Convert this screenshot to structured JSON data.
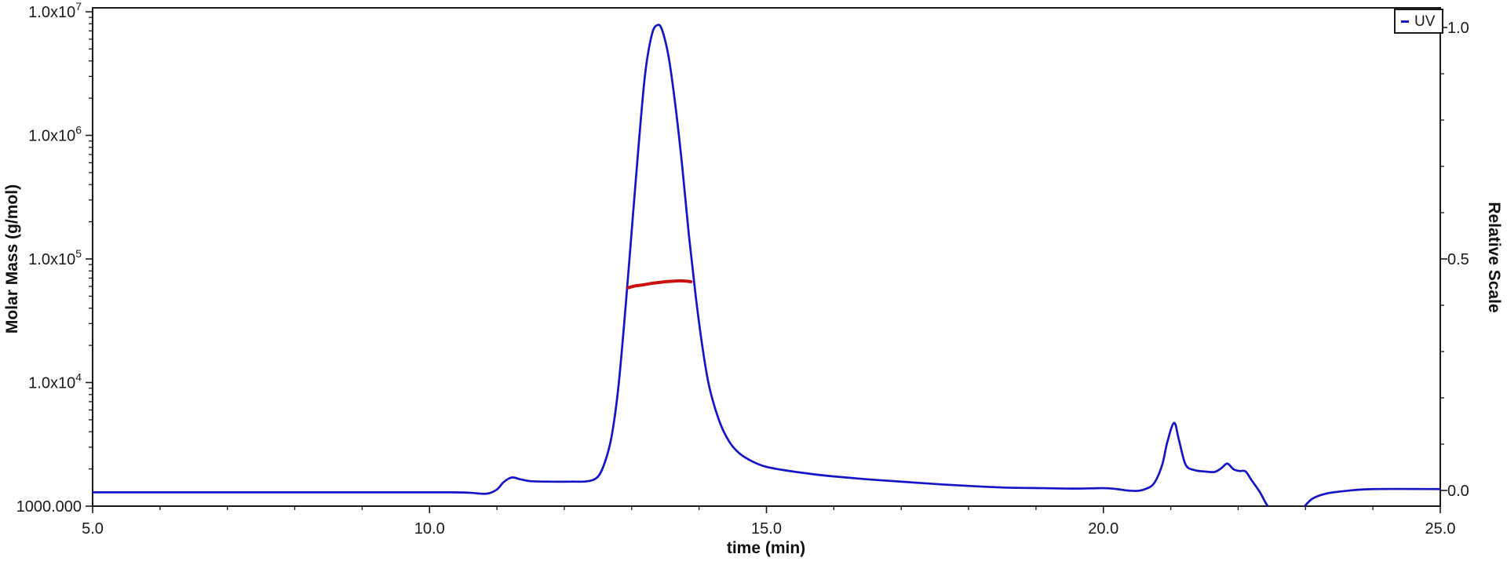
{
  "chart_data": {
    "type": "line",
    "title": "",
    "xlabel": "time (min)",
    "x_axis": {
      "min": 5,
      "max": 25,
      "minor_step": 1,
      "major_ticks": [
        {
          "value": 5,
          "label": "5.0"
        },
        {
          "value": 10,
          "label": "10.0"
        },
        {
          "value": 15,
          "label": "15.0"
        },
        {
          "value": 20,
          "label": "20.0"
        },
        {
          "value": 25,
          "label": "25.0"
        }
      ]
    },
    "left_axis": {
      "label": "Molar Mass (g/mol)",
      "scale": "log",
      "min": 1000,
      "max": 10000000,
      "major_ticks": [
        {
          "value": 10000000,
          "mantissa": "1.0x10",
          "exponent": "7"
        },
        {
          "value": 1000000,
          "mantissa": "1.0x10",
          "exponent": "6"
        },
        {
          "value": 100000,
          "mantissa": "1.0x10",
          "exponent": "5"
        },
        {
          "value": 10000,
          "mantissa": "1.0x10",
          "exponent": "4"
        },
        {
          "value": 1000,
          "mantissa": "1000.000",
          "exponent": ""
        }
      ]
    },
    "right_axis": {
      "label": "Relative Scale",
      "min": 0,
      "max": 1,
      "minor_step": 0.1,
      "major_ticks": [
        {
          "value": 0,
          "label": "0.0"
        },
        {
          "value": 0.5,
          "label": "0.5"
        },
        {
          "value": 1,
          "label": "1.0"
        }
      ]
    },
    "legend": {
      "position": "top-right",
      "entries": [
        "UV"
      ]
    },
    "colors": {
      "uv_trace": "#1414c8",
      "molar_mass_trace": "#cc1010",
      "frame": "#1a1a1a"
    },
    "grid": false,
    "series": [
      {
        "name": "UV",
        "axis": "right",
        "color": "#1414c8",
        "points": [
          [
            5.0,
            -0.004
          ],
          [
            7.0,
            -0.004
          ],
          [
            9.0,
            -0.004
          ],
          [
            10.3,
            -0.004
          ],
          [
            10.6,
            -0.005
          ],
          [
            10.85,
            -0.007
          ],
          [
            11.0,
            0.002
          ],
          [
            11.1,
            0.018
          ],
          [
            11.22,
            0.028
          ],
          [
            11.35,
            0.024
          ],
          [
            11.5,
            0.02
          ],
          [
            11.8,
            0.019
          ],
          [
            12.1,
            0.019
          ],
          [
            12.35,
            0.02
          ],
          [
            12.5,
            0.03
          ],
          [
            12.6,
            0.06
          ],
          [
            12.7,
            0.115
          ],
          [
            12.8,
            0.22
          ],
          [
            12.9,
            0.38
          ],
          [
            13.0,
            0.56
          ],
          [
            13.1,
            0.74
          ],
          [
            13.2,
            0.9
          ],
          [
            13.3,
            0.985
          ],
          [
            13.38,
            1.005
          ],
          [
            13.45,
            0.995
          ],
          [
            13.55,
            0.935
          ],
          [
            13.65,
            0.83
          ],
          [
            13.75,
            0.7
          ],
          [
            13.85,
            0.55
          ],
          [
            13.95,
            0.42
          ],
          [
            14.05,
            0.31
          ],
          [
            14.15,
            0.225
          ],
          [
            14.3,
            0.15
          ],
          [
            14.45,
            0.105
          ],
          [
            14.6,
            0.08
          ],
          [
            14.8,
            0.062
          ],
          [
            15.0,
            0.051
          ],
          [
            15.3,
            0.043
          ],
          [
            15.7,
            0.035
          ],
          [
            16.1,
            0.029
          ],
          [
            16.6,
            0.023
          ],
          [
            17.1,
            0.018
          ],
          [
            17.6,
            0.013
          ],
          [
            18.1,
            0.009
          ],
          [
            18.6,
            0.006
          ],
          [
            19.1,
            0.005
          ],
          [
            19.6,
            0.004
          ],
          [
            20.0,
            0.005
          ],
          [
            20.2,
            0.003
          ],
          [
            20.35,
            0.0
          ],
          [
            20.5,
            -0.001
          ],
          [
            20.62,
            0.003
          ],
          [
            20.75,
            0.015
          ],
          [
            20.87,
            0.054
          ],
          [
            20.95,
            0.105
          ],
          [
            21.05,
            0.146
          ],
          [
            21.12,
            0.11
          ],
          [
            21.22,
            0.056
          ],
          [
            21.35,
            0.044
          ],
          [
            21.5,
            0.041
          ],
          [
            21.65,
            0.04
          ],
          [
            21.75,
            0.048
          ],
          [
            21.84,
            0.058
          ],
          [
            21.93,
            0.046
          ],
          [
            22.02,
            0.042
          ],
          [
            22.11,
            0.041
          ],
          [
            22.2,
            0.022
          ],
          [
            22.32,
            -0.003
          ],
          [
            22.44,
            -0.034
          ],
          [
            22.6,
            -0.06
          ],
          [
            22.8,
            -0.062
          ],
          [
            22.95,
            -0.04
          ],
          [
            23.1,
            -0.018
          ],
          [
            23.3,
            -0.007
          ],
          [
            23.6,
            -0.001
          ],
          [
            24.0,
            0.003
          ],
          [
            25.0,
            0.003
          ]
        ]
      },
      {
        "name": "Molar Mass",
        "axis": "left",
        "color": "#cc1010",
        "points": [
          [
            12.95,
            58500
          ],
          [
            13.05,
            60500
          ],
          [
            13.15,
            61500
          ],
          [
            13.3,
            63500
          ],
          [
            13.45,
            65000
          ],
          [
            13.6,
            66000
          ],
          [
            13.72,
            66500
          ],
          [
            13.82,
            66000
          ],
          [
            13.88,
            65500
          ]
        ]
      }
    ]
  }
}
